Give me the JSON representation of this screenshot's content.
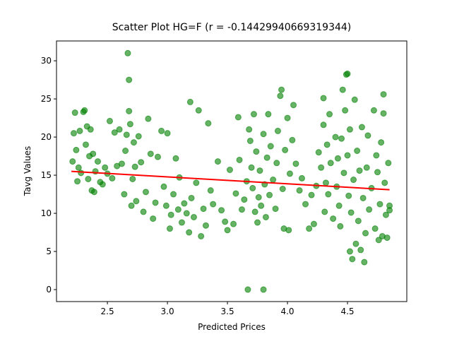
{
  "chart_data": {
    "type": "scatter",
    "title": "Scatter Plot HG=F (r = -0.14429940669319344)",
    "x_label": "Predicted Prices",
    "y_label": "Tavg Values",
    "xlim": [
      2.076,
      4.994
    ],
    "ylim": [
      -1.57,
      32.6
    ],
    "xticks": [
      2.5,
      {
        "value": 3,
        "label": "3.0"
      },
      3.5,
      {
        "value": 4,
        "label": "4.0"
      },
      4.5
    ],
    "yticks": [
      0,
      5,
      10,
      15,
      20,
      25,
      30
    ],
    "color": "green",
    "series": [
      {
        "x": [
          2.21,
          2.22,
          2.23,
          2.24,
          2.25,
          2.26,
          2.27,
          2.28,
          2.3,
          2.31,
          2.32,
          2.33,
          2.34,
          2.35,
          2.36,
          2.37,
          2.38,
          2.39,
          2.4,
          2.42,
          2.44,
          2.46,
          2.48,
          2.5,
          2.52,
          2.54,
          2.56,
          2.58,
          2.6,
          2.62,
          2.64,
          2.65,
          2.66,
          2.67,
          2.68,
          2.68,
          2.69,
          2.7,
          2.71,
          2.72,
          2.73,
          2.74,
          2.76,
          2.78,
          2.8,
          2.82,
          2.84,
          2.86,
          2.88,
          2.9,
          2.92,
          2.95,
          2.97,
          2.99,
          3.0,
          3.02,
          3.03,
          3.05,
          3.07,
          3.09,
          3.1,
          3.12,
          3.14,
          3.16,
          3.18,
          3.19,
          3.2,
          3.22,
          3.24,
          3.26,
          3.28,
          3.3,
          3.32,
          3.34,
          3.36,
          3.38,
          3.42,
          3.45,
          3.48,
          3.5,
          3.52,
          3.55,
          3.57,
          3.59,
          3.6,
          3.62,
          3.64,
          3.66,
          3.67,
          3.68,
          3.69,
          3.7,
          3.71,
          3.72,
          3.73,
          3.74,
          3.75,
          3.76,
          3.77,
          3.78,
          3.8,
          3.8,
          3.81,
          3.82,
          3.83,
          3.84,
          3.85,
          3.86,
          3.88,
          3.9,
          3.91,
          3.92,
          3.94,
          3.95,
          3.96,
          3.97,
          3.98,
          4.0,
          4.01,
          4.02,
          4.04,
          4.05,
          4.07,
          4.1,
          4.12,
          4.15,
          4.18,
          4.2,
          4.22,
          4.24,
          4.26,
          4.28,
          4.3,
          4.3,
          4.31,
          4.32,
          4.33,
          4.34,
          4.35,
          4.36,
          4.38,
          4.4,
          4.41,
          4.42,
          4.43,
          4.44,
          4.45,
          4.46,
          4.47,
          4.48,
          4.49,
          4.5,
          4.5,
          4.51,
          4.52,
          4.52,
          4.53,
          4.54,
          4.55,
          4.56,
          4.57,
          4.58,
          4.59,
          4.6,
          4.61,
          4.62,
          4.63,
          4.64,
          4.65,
          4.66,
          4.67,
          4.68,
          4.7,
          4.72,
          4.73,
          4.74,
          4.75,
          4.76,
          4.77,
          4.78,
          4.79,
          4.8,
          4.8,
          4.81,
          4.82,
          4.83,
          4.84,
          4.85,
          4.85
        ],
        "values": [
          16.8,
          20.5,
          23.2,
          18.3,
          14.2,
          16.0,
          20.8,
          15.3,
          23.3,
          23.5,
          19.0,
          21.4,
          14.5,
          17.5,
          21.0,
          13.0,
          17.8,
          12.8,
          15.5,
          16.8,
          14.1,
          13.8,
          16.0,
          15.2,
          22.1,
          14.6,
          20.6,
          16.2,
          21.0,
          16.5,
          12.5,
          18.2,
          20.3,
          31.0,
          27.5,
          23.4,
          21.7,
          11.0,
          14.5,
          19.3,
          16.1,
          11.6,
          20.1,
          16.7,
          10.2,
          12.8,
          22.4,
          17.8,
          9.3,
          11.4,
          17.4,
          20.8,
          13.5,
          11.0,
          20.5,
          8.0,
          9.8,
          12.5,
          17.2,
          10.5,
          14.7,
          8.8,
          11.3,
          10.0,
          7.5,
          24.6,
          12.0,
          9.5,
          14.0,
          23.5,
          7.0,
          10.6,
          8.4,
          21.8,
          13.0,
          11.2,
          16.8,
          10.4,
          8.9,
          7.8,
          15.7,
          8.6,
          12.6,
          22.6,
          17.0,
          10.5,
          11.8,
          14.2,
          0.0,
          21.0,
          19.5,
          16.0,
          13.3,
          23.0,
          10.2,
          18.1,
          8.8,
          12.1,
          15.6,
          11.0,
          0.0,
          20.4,
          13.8,
          9.5,
          17.3,
          23.0,
          12.4,
          18.8,
          14.4,
          10.6,
          16.6,
          20.8,
          25.4,
          26.2,
          13.2,
          8.0,
          18.3,
          22.5,
          7.8,
          15.2,
          19.6,
          24.2,
          16.5,
          13.0,
          14.6,
          11.2,
          8.0,
          12.4,
          8.6,
          13.6,
          18.0,
          16.0,
          25.1,
          21.6,
          10.2,
          14.0,
          19.0,
          12.5,
          23.0,
          16.6,
          9.3,
          20.0,
          13.5,
          17.2,
          11.0,
          8.3,
          19.8,
          26.2,
          15.3,
          23.5,
          28.2,
          28.3,
          17.6,
          12.3,
          5.0,
          21.0,
          10.1,
          4.0,
          14.4,
          24.9,
          6.0,
          18.2,
          9.0,
          15.6,
          5.2,
          21.3,
          12.0,
          3.6,
          7.4,
          16.0,
          20.2,
          10.5,
          13.3,
          23.5,
          8.0,
          17.6,
          15.4,
          6.5,
          11.2,
          19.3,
          7.0,
          25.6,
          23.1,
          14.0,
          9.8,
          6.8,
          16.6,
          11.0,
          10.4
        ]
      }
    ],
    "fit_line": {
      "x": [
        2.2,
        4.85
      ],
      "values": [
        15.5,
        13.1
      ],
      "color": "red"
    }
  }
}
